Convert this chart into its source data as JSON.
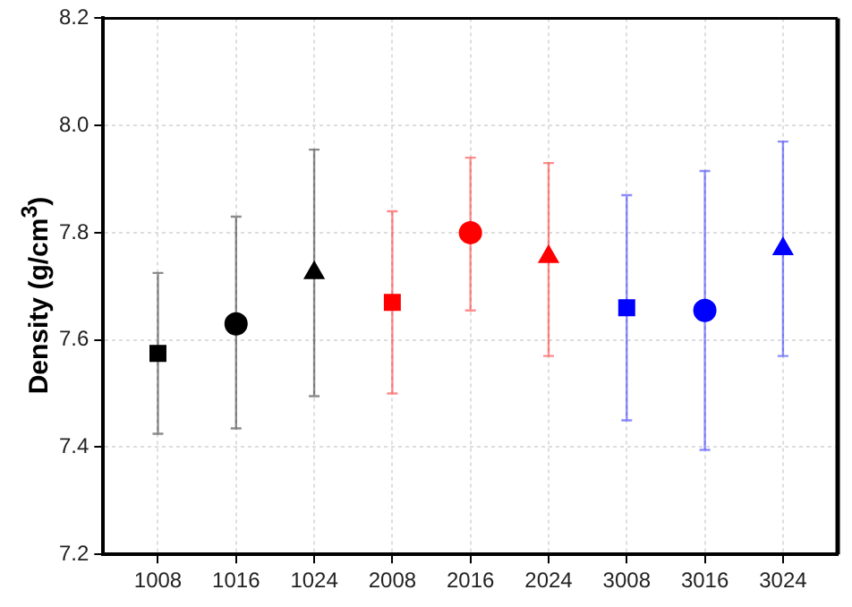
{
  "chart_data": {
    "type": "scatter",
    "ylabel": "Density (g/cm$^{3}$)",
    "categories": [
      "1008",
      "1016",
      "1024",
      "2008",
      "2016",
      "2024",
      "3008",
      "3016",
      "3024"
    ],
    "series": [
      {
        "marker": "square",
        "values": [
          7.575,
          null,
          null,
          7.67,
          null,
          null,
          7.66,
          null,
          null
        ],
        "colors": [
          "#000000",
          null,
          null,
          "#ff0000",
          null,
          null,
          "#0000ff",
          null,
          null
        ],
        "errors": [
          [
            7.425,
            7.725
          ],
          null,
          null,
          [
            7.5,
            7.84
          ],
          null,
          null,
          [
            7.45,
            7.87
          ],
          null,
          null
        ]
      },
      {
        "marker": "circle",
        "values": [
          null,
          7.63,
          null,
          null,
          7.8,
          null,
          null,
          7.655,
          null
        ],
        "colors": [
          null,
          "#000000",
          null,
          null,
          "#ff0000",
          null,
          null,
          "#0000ff",
          null
        ],
        "errors": [
          null,
          [
            7.435,
            7.83
          ],
          null,
          null,
          [
            7.655,
            7.94
          ],
          null,
          null,
          [
            7.395,
            7.915
          ],
          null
        ]
      },
      {
        "marker": "triangle",
        "values": [
          null,
          null,
          7.725,
          null,
          null,
          7.755,
          null,
          null,
          7.77
        ],
        "colors": [
          null,
          null,
          "#000000",
          null,
          null,
          "#ff0000",
          null,
          null,
          "#0000ff"
        ],
        "errors": [
          null,
          null,
          [
            7.495,
            7.955
          ],
          null,
          null,
          [
            7.57,
            7.93
          ],
          null,
          null,
          [
            7.57,
            7.97
          ]
        ]
      }
    ],
    "ylim": [
      7.2,
      8.2
    ],
    "yticks": [
      7.2,
      7.4,
      7.6,
      7.8,
      {
        "value": 8,
        "label": "8.0"
      },
      8.2
    ],
    "grid": true,
    "legend": false
  }
}
